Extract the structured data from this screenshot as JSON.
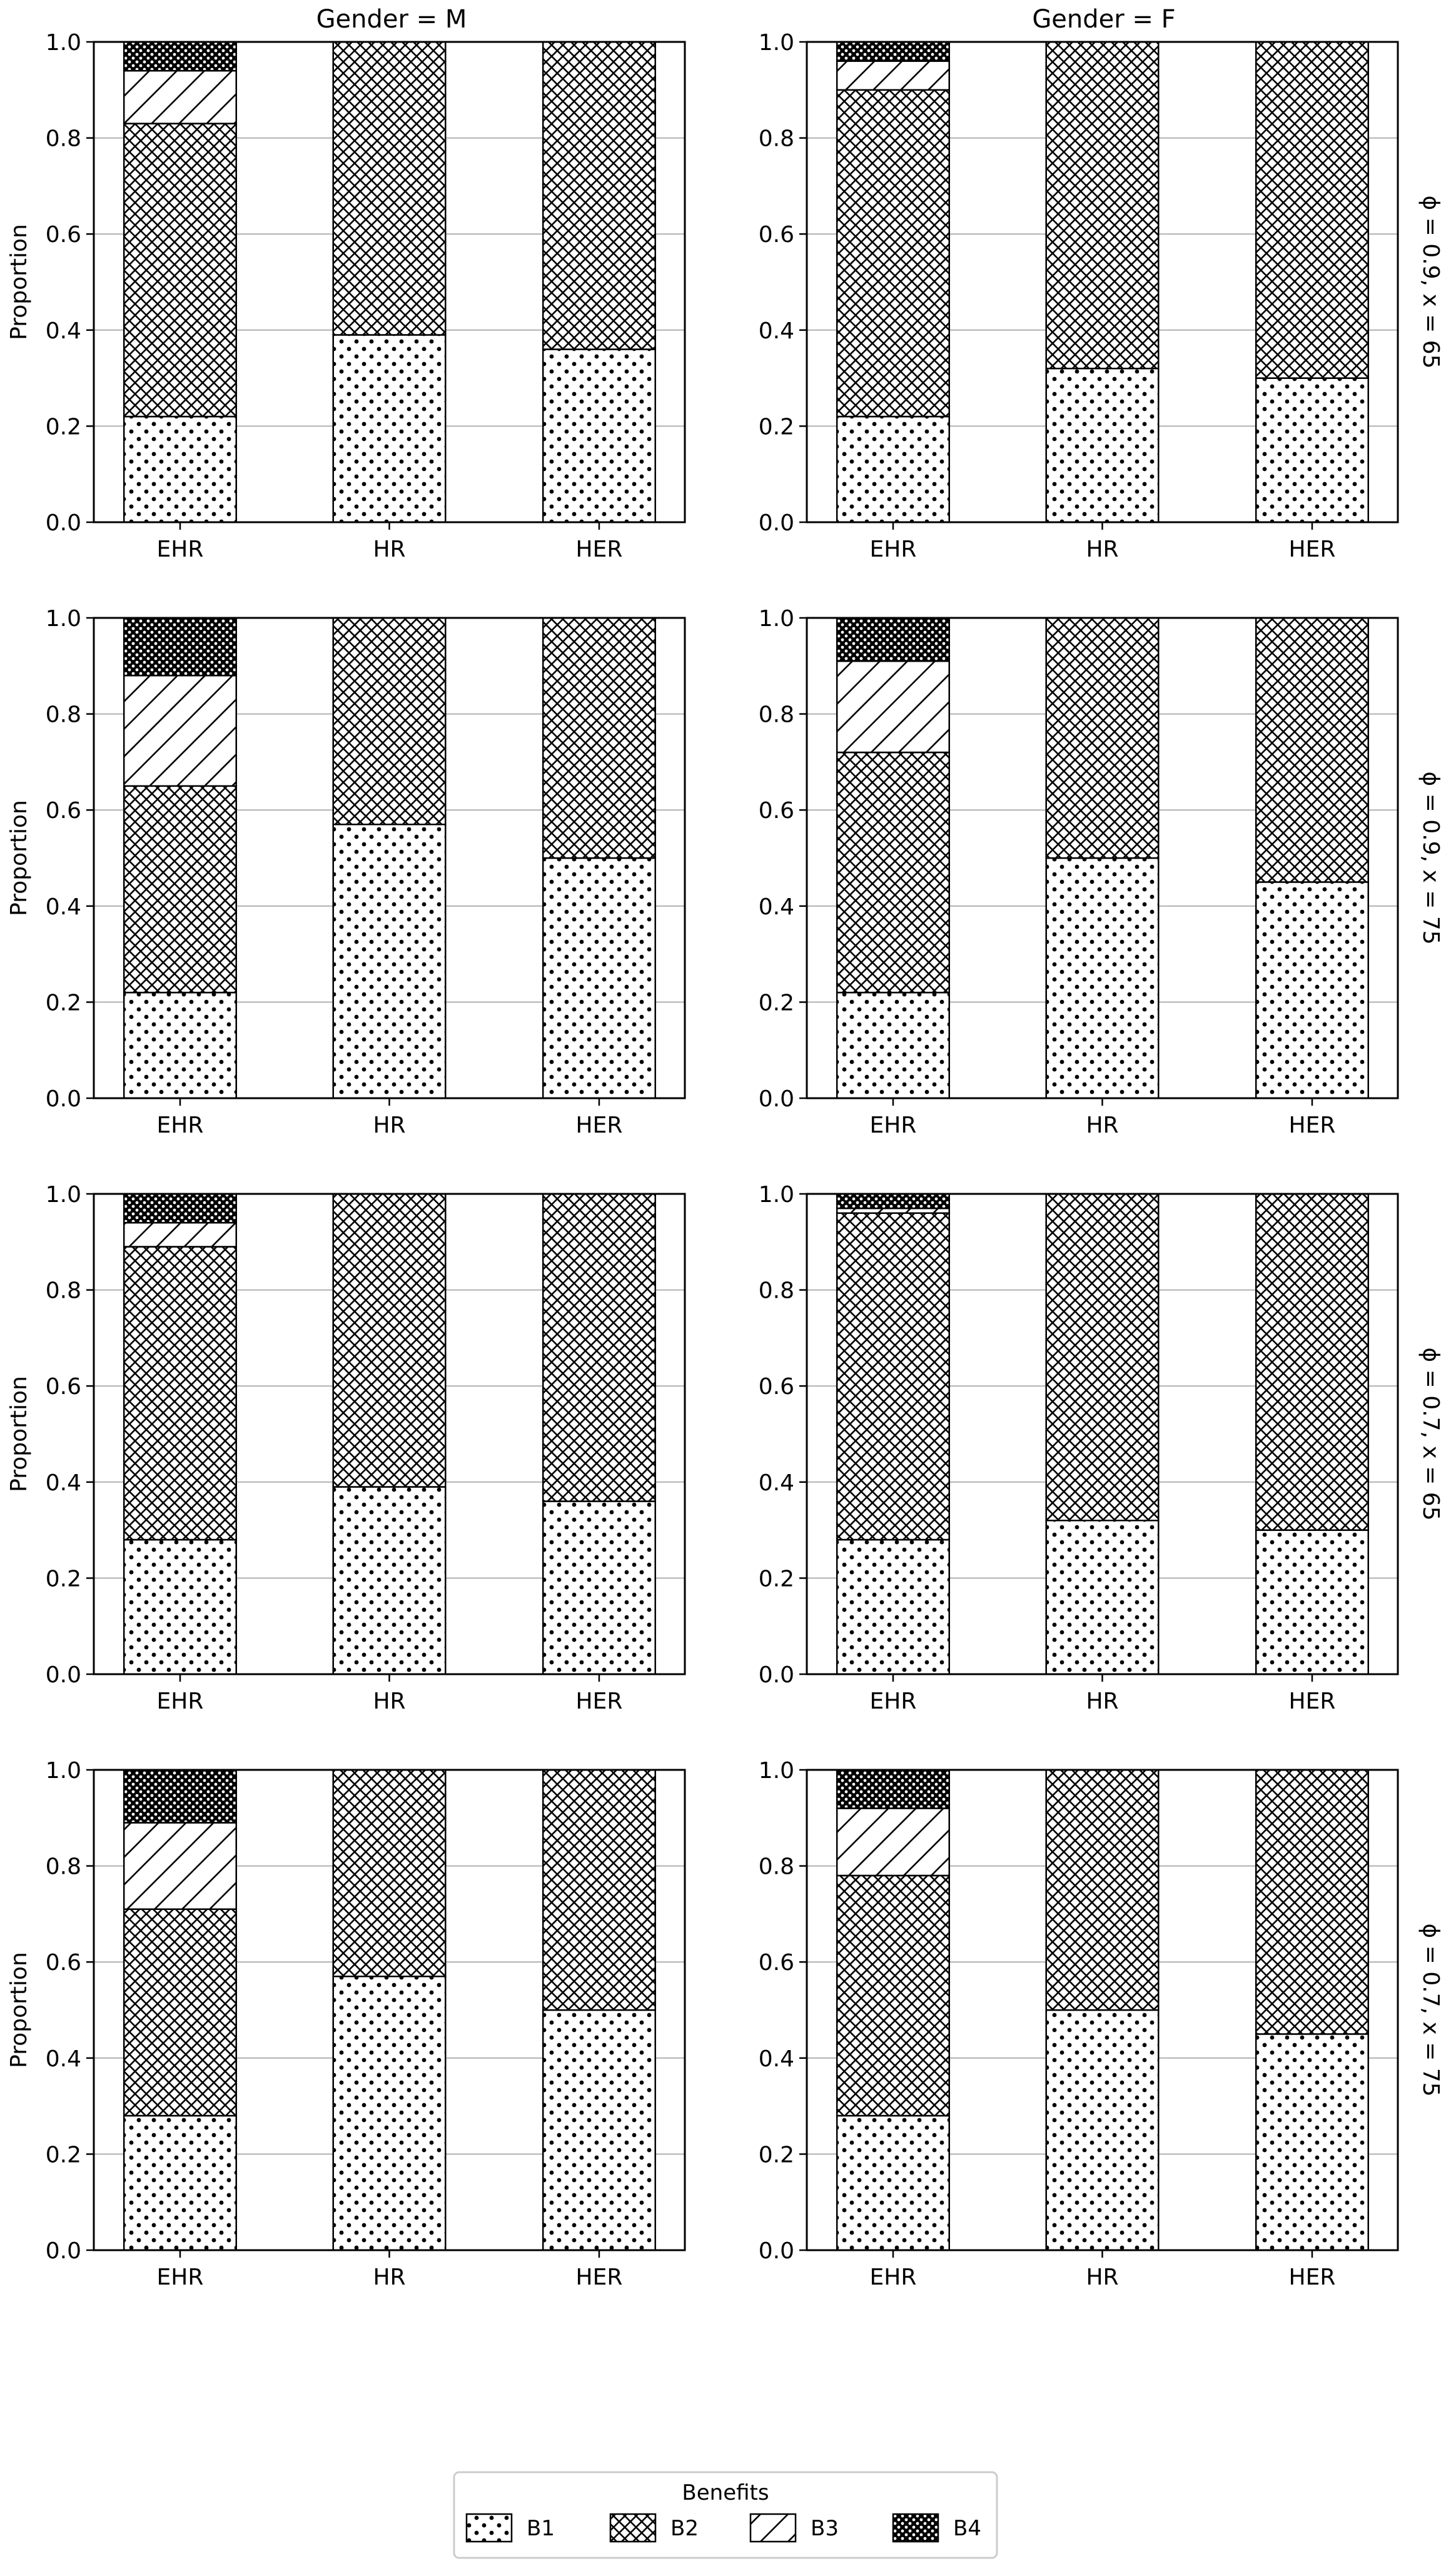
{
  "figure": {
    "col_titles": [
      "Gender = M",
      "Gender = F"
    ],
    "row_titles": [
      "ϕ = 0.9, x = 65",
      "ϕ = 0.9, x = 75",
      "ϕ = 0.7, x = 65",
      "ϕ = 0.7, x = 75"
    ],
    "legend": {
      "title": "Benefits",
      "entries": [
        "B1",
        "B2",
        "B3",
        "B4"
      ],
      "placement": "bottom-center"
    },
    "pattern_names": {
      "B1": "dots",
      "B2": "crosshatch",
      "B3": "diagonal",
      "B4": "dense-dots"
    },
    "colors": {
      "bar_fill": "#ffffff",
      "hatch": "#000000",
      "grid": "#b0b0b0"
    }
  },
  "chart_data": [
    {
      "type": "bar",
      "stacked": true,
      "panel": "Gender = M | ϕ = 0.9, x = 65",
      "categories": [
        "EHR",
        "HR",
        "HER"
      ],
      "ylabel": "Proportion",
      "ylim": [
        0,
        1.0
      ],
      "yticks": [
        "0.0",
        "0.2",
        "0.4",
        "0.6",
        "0.8",
        "1.0"
      ],
      "grid": "y",
      "series": [
        {
          "name": "B1",
          "values": [
            0.22,
            0.39,
            0.36
          ]
        },
        {
          "name": "B2",
          "values": [
            0.61,
            0.61,
            0.64
          ]
        },
        {
          "name": "B3",
          "values": [
            0.11,
            0,
            0
          ]
        },
        {
          "name": "B4",
          "values": [
            0.06,
            0,
            0
          ]
        }
      ]
    },
    {
      "type": "bar",
      "stacked": true,
      "panel": "Gender = F | ϕ = 0.9, x = 65",
      "categories": [
        "EHR",
        "HR",
        "HER"
      ],
      "ylabel": "",
      "ylim": [
        0,
        1.0
      ],
      "yticks": [
        "0.0",
        "0.2",
        "0.4",
        "0.6",
        "0.8",
        "1.0"
      ],
      "grid": "y",
      "series": [
        {
          "name": "B1",
          "values": [
            0.22,
            0.32,
            0.3
          ]
        },
        {
          "name": "B2",
          "values": [
            0.68,
            0.68,
            0.7
          ]
        },
        {
          "name": "B3",
          "values": [
            0.06,
            0,
            0
          ]
        },
        {
          "name": "B4",
          "values": [
            0.04,
            0,
            0
          ]
        }
      ]
    },
    {
      "type": "bar",
      "stacked": true,
      "panel": "Gender = M | ϕ = 0.9, x = 75",
      "categories": [
        "EHR",
        "HR",
        "HER"
      ],
      "ylabel": "Proportion",
      "ylim": [
        0,
        1.0
      ],
      "yticks": [
        "0.0",
        "0.2",
        "0.4",
        "0.6",
        "0.8",
        "1.0"
      ],
      "grid": "y",
      "series": [
        {
          "name": "B1",
          "values": [
            0.22,
            0.57,
            0.5
          ]
        },
        {
          "name": "B2",
          "values": [
            0.43,
            0.43,
            0.5
          ]
        },
        {
          "name": "B3",
          "values": [
            0.23,
            0,
            0
          ]
        },
        {
          "name": "B4",
          "values": [
            0.12,
            0,
            0
          ]
        }
      ]
    },
    {
      "type": "bar",
      "stacked": true,
      "panel": "Gender = F | ϕ = 0.9, x = 75",
      "categories": [
        "EHR",
        "HR",
        "HER"
      ],
      "ylabel": "",
      "ylim": [
        0,
        1.0
      ],
      "yticks": [
        "0.0",
        "0.2",
        "0.4",
        "0.6",
        "0.8",
        "1.0"
      ],
      "grid": "y",
      "series": [
        {
          "name": "B1",
          "values": [
            0.22,
            0.5,
            0.45
          ]
        },
        {
          "name": "B2",
          "values": [
            0.5,
            0.5,
            0.55
          ]
        },
        {
          "name": "B3",
          "values": [
            0.19,
            0,
            0
          ]
        },
        {
          "name": "B4",
          "values": [
            0.09,
            0,
            0
          ]
        }
      ]
    },
    {
      "type": "bar",
      "stacked": true,
      "panel": "Gender = M | ϕ = 0.7, x = 65",
      "categories": [
        "EHR",
        "HR",
        "HER"
      ],
      "ylabel": "Proportion",
      "ylim": [
        0,
        1.0
      ],
      "yticks": [
        "0.0",
        "0.2",
        "0.4",
        "0.6",
        "0.8",
        "1.0"
      ],
      "grid": "y",
      "series": [
        {
          "name": "B1",
          "values": [
            0.28,
            0.39,
            0.36
          ]
        },
        {
          "name": "B2",
          "values": [
            0.61,
            0.61,
            0.64
          ]
        },
        {
          "name": "B3",
          "values": [
            0.05,
            0,
            0
          ]
        },
        {
          "name": "B4",
          "values": [
            0.06,
            0,
            0
          ]
        }
      ]
    },
    {
      "type": "bar",
      "stacked": true,
      "panel": "Gender = F | ϕ = 0.7, x = 65",
      "categories": [
        "EHR",
        "HR",
        "HER"
      ],
      "ylabel": "",
      "ylim": [
        0,
        1.0
      ],
      "yticks": [
        "0.0",
        "0.2",
        "0.4",
        "0.6",
        "0.8",
        "1.0"
      ],
      "grid": "y",
      "series": [
        {
          "name": "B1",
          "values": [
            0.28,
            0.32,
            0.3
          ]
        },
        {
          "name": "B2",
          "values": [
            0.68,
            0.68,
            0.7
          ]
        },
        {
          "name": "B3",
          "values": [
            0.01,
            0,
            0
          ]
        },
        {
          "name": "B4",
          "values": [
            0.03,
            0,
            0
          ]
        }
      ]
    },
    {
      "type": "bar",
      "stacked": true,
      "panel": "Gender = M | ϕ = 0.7, x = 75",
      "categories": [
        "EHR",
        "HR",
        "HER"
      ],
      "ylabel": "Proportion",
      "ylim": [
        0,
        1.0
      ],
      "yticks": [
        "0.0",
        "0.2",
        "0.4",
        "0.6",
        "0.8",
        "1.0"
      ],
      "grid": "y",
      "series": [
        {
          "name": "B1",
          "values": [
            0.28,
            0.57,
            0.5
          ]
        },
        {
          "name": "B2",
          "values": [
            0.43,
            0.43,
            0.5
          ]
        },
        {
          "name": "B3",
          "values": [
            0.18,
            0,
            0
          ]
        },
        {
          "name": "B4",
          "values": [
            0.11,
            0,
            0
          ]
        }
      ]
    },
    {
      "type": "bar",
      "stacked": true,
      "panel": "Gender = F | ϕ = 0.7, x = 75",
      "categories": [
        "EHR",
        "HR",
        "HER"
      ],
      "ylabel": "",
      "ylim": [
        0,
        1.0
      ],
      "yticks": [
        "0.0",
        "0.2",
        "0.4",
        "0.6",
        "0.8",
        "1.0"
      ],
      "grid": "y",
      "series": [
        {
          "name": "B1",
          "values": [
            0.28,
            0.5,
            0.45
          ]
        },
        {
          "name": "B2",
          "values": [
            0.5,
            0.5,
            0.55
          ]
        },
        {
          "name": "B3",
          "values": [
            0.14,
            0,
            0
          ]
        },
        {
          "name": "B4",
          "values": [
            0.08,
            0,
            0
          ]
        }
      ]
    }
  ]
}
